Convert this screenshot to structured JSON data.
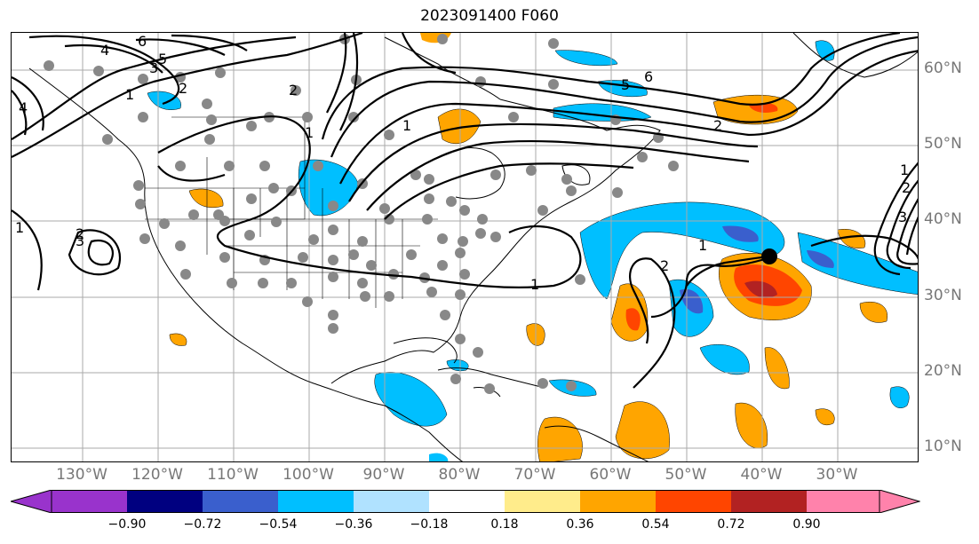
{
  "title": "2023091400 F060",
  "lat_labels": [
    "60°N",
    "50°N",
    "40°N",
    "30°N",
    "20°N",
    "10°N"
  ],
  "lon_labels": [
    "130°W",
    "120°W",
    "110°W",
    "100°W",
    "90°W",
    "80°W",
    "70°W",
    "60°W",
    "50°W",
    "40°W",
    "30°W"
  ],
  "contour_labels": [
    "1",
    "2",
    "3",
    "4",
    "5",
    "6",
    "1",
    "2",
    "6",
    "5",
    "2",
    "1",
    "2",
    "3",
    "4",
    "1",
    "2",
    "1",
    "1",
    "2",
    "1",
    "3"
  ],
  "colorbar": {
    "ticks": [
      "−0.90",
      "−0.72",
      "−0.54",
      "−0.36",
      "−0.18",
      "0.18",
      "0.36",
      "0.54",
      "0.72",
      "0.90"
    ],
    "colors": [
      "#9933cc",
      "#000080",
      "#3a5fcd",
      "#00bfff",
      "#b0e2ff",
      "#ffffff",
      "#ffec8b",
      "#ffa500",
      "#ff4500",
      "#b22222",
      "#ff82ab"
    ]
  },
  "map": {
    "storm_marker": "filled-circle",
    "colors": {
      "coast": "#000000",
      "station": "#888888",
      "grid": "#aaaaaa"
    }
  }
}
